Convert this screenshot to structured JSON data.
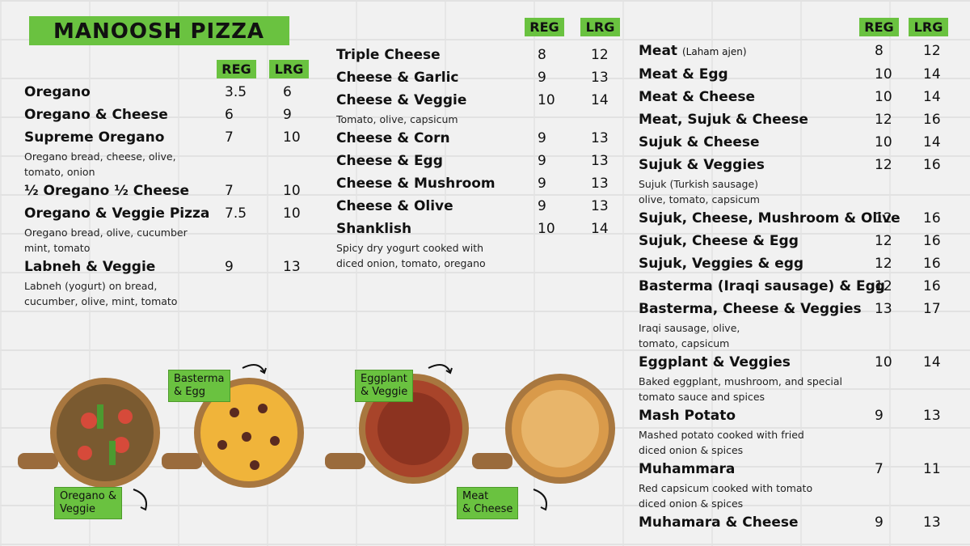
{
  "title": "MANOOSH PIZZA",
  "columns": [
    {
      "headers": [
        "REG",
        "LRG"
      ],
      "items": [
        {
          "name": "Oregano",
          "reg": 3.5,
          "lrg": 6
        },
        {
          "name": "Oregano & Cheese",
          "reg": 6,
          "lrg": 9
        },
        {
          "name": "Supreme Oregano",
          "description": [
            "Oregano bread, cheese, olive,",
            "tomato, onion"
          ],
          "reg": 7,
          "lrg": 10
        },
        {
          "name": "½ Oregano ½ Cheese",
          "reg": 7,
          "lrg": 10
        },
        {
          "name": "Oregano & Veggie Pizza",
          "description": [
            "Oregano bread, olive, cucumber",
            "mint, tomato"
          ],
          "reg": 7.5,
          "lrg": 10
        },
        {
          "name": "Labneh & Veggie",
          "description": [
            "Labneh (yogurt) on bread,",
            "cucumber, olive, mint, tomato"
          ],
          "reg": 9,
          "lrg": 13
        }
      ]
    },
    {
      "headers": [
        "REG",
        "LRG"
      ],
      "items": [
        {
          "name": "Triple Cheese",
          "reg": 8,
          "lrg": 12
        },
        {
          "name": "Cheese & Garlic",
          "reg": 9,
          "lrg": 13
        },
        {
          "name": "Cheese & Veggie",
          "description": [
            "Tomato, olive, capsicum"
          ],
          "reg": 10,
          "lrg": 14
        },
        {
          "name": "Cheese & Corn",
          "reg": 9,
          "lrg": 13
        },
        {
          "name": "Cheese & Egg",
          "reg": 9,
          "lrg": 13
        },
        {
          "name": "Cheese & Mushroom",
          "reg": 9,
          "lrg": 13
        },
        {
          "name": "Cheese & Olive",
          "reg": 9,
          "lrg": 13
        },
        {
          "name": "Shanklish",
          "description": [
            "Spicy dry yogurt cooked with",
            "diced onion, tomato, oregano"
          ],
          "reg": 10,
          "lrg": 14
        }
      ]
    },
    {
      "headers": [
        "REG",
        "LRG"
      ],
      "items": [
        {
          "name": "Meat",
          "note": "(Laham ajen)",
          "reg": 8,
          "lrg": 12
        },
        {
          "name": "Meat & Egg",
          "reg": 10,
          "lrg": 14
        },
        {
          "name": "Meat & Cheese",
          "reg": 10,
          "lrg": 14
        },
        {
          "name": "Meat, Sujuk & Cheese",
          "reg": 12,
          "lrg": 16
        },
        {
          "name": "Sujuk & Cheese",
          "reg": 10,
          "lrg": 14
        },
        {
          "name": "Sujuk & Veggies",
          "description": [
            "Sujuk (Turkish sausage)",
            "olive, tomato, capsicum"
          ],
          "reg": 12,
          "lrg": 16
        },
        {
          "name": "Sujuk, Cheese, Mushroom & Olive",
          "reg": 12,
          "lrg": 16
        },
        {
          "name": "Sujuk, Cheese & Egg",
          "reg": 12,
          "lrg": 16
        },
        {
          "name": "Sujuk, Veggies & egg",
          "reg": 12,
          "lrg": 16
        },
        {
          "name": "Basterma (Iraqi sausage) & Egg",
          "reg": 12,
          "lrg": 16
        },
        {
          "name": "Basterma,  Cheese  & Veggies",
          "description": [
            "Iraqi sausage, olive,",
            "tomato, capsicum"
          ],
          "reg": 13,
          "lrg": 17
        },
        {
          "name": "Eggplant & Veggies",
          "description": [
            "Baked eggplant, mushroom, and special",
            "tomato sauce and spices"
          ],
          "reg": 10,
          "lrg": 14
        },
        {
          "name": "Mash Potato",
          "description": [
            "Mashed potato cooked with fried",
            "diced onion & spices"
          ],
          "reg": 9,
          "lrg": 13
        },
        {
          "name": "Muhammara",
          "description": [
            "Red capsicum cooked with tomato",
            "diced onion & spices"
          ],
          "reg": 7,
          "lrg": 11
        },
        {
          "name": "Muhamara & Cheese",
          "reg": 9,
          "lrg": 13
        }
      ]
    }
  ],
  "image_labels": [
    [
      "Basterma",
      "& Egg"
    ],
    [
      "Eggplant",
      "& Veggie"
    ],
    [
      "Oregano &",
      "Veggie"
    ],
    [
      "Meat",
      "& Cheese"
    ]
  ]
}
